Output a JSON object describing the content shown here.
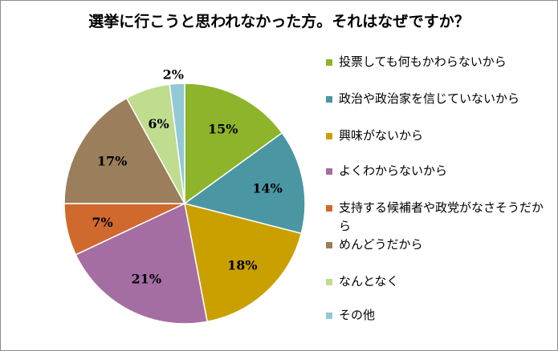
{
  "chart_data": {
    "type": "pie",
    "title": "選挙に行こうと思われなかった方。それはなぜですか？",
    "slices": [
      {
        "label": "投票しても何もかわらないから",
        "value": 15,
        "display": "15%",
        "color": "#8db42b"
      },
      {
        "label": "政治や政治家を信じていないから",
        "value": 14,
        "display": "14%",
        "color": "#4a97a3"
      },
      {
        "label": "興味がないから",
        "value": 18,
        "display": "18%",
        "color": "#c9a000"
      },
      {
        "label": "よくわからないから",
        "value": 21,
        "display": "21%",
        "color": "#a56ea3"
      },
      {
        "label": "支持する候補者や政党がなさそうだから",
        "value": 7,
        "display": "7%",
        "color": "#d0692e"
      },
      {
        "label": "めんどうだから",
        "value": 17,
        "display": "17%",
        "color": "#9b7e5b"
      },
      {
        "label": "なんとなく",
        "value": 6,
        "display": "6%",
        "color": "#bfdc8f"
      },
      {
        "label": "その他",
        "value": 2,
        "display": "2%",
        "color": "#93c8d6"
      }
    ],
    "legend_position": "right"
  }
}
